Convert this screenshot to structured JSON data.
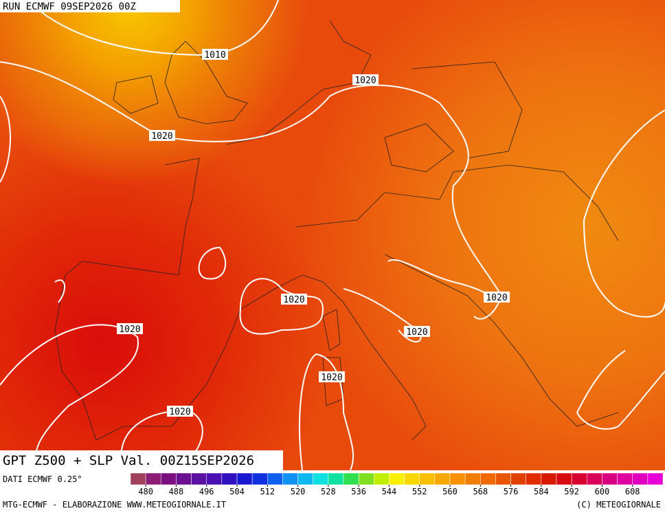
{
  "header": {
    "run": "RUN ECMWF 09SEP2026 00Z"
  },
  "map": {
    "title": "GPT Z500 + SLP Val. 00Z15SEP2026",
    "isobar_labels": [
      1010,
      1020,
      1020,
      1020,
      1020,
      1020,
      1020,
      1020,
      1020
    ]
  },
  "legend": {
    "source": "DATI ECMWF 0.25°",
    "colors": [
      "#a0405a",
      "#8c1e78",
      "#7a1080",
      "#6a1090",
      "#5a10a0",
      "#4a10b0",
      "#3010c0",
      "#1818d0",
      "#1030e0",
      "#1060f0",
      "#1090f0",
      "#10b8f0",
      "#10e0e0",
      "#10e0a0",
      "#30e050",
      "#80e020",
      "#c0f000",
      "#f8f000",
      "#f8d800",
      "#f8c000",
      "#f8a800",
      "#f89000",
      "#f07c00",
      "#f06800",
      "#e85400",
      "#e04000",
      "#e02c00",
      "#d81800",
      "#d80a10",
      "#d80030",
      "#d80058",
      "#d80080",
      "#e000a0",
      "#e000c0",
      "#e800d8"
    ],
    "ticks": [
      480,
      488,
      496,
      504,
      512,
      520,
      528,
      536,
      544,
      552,
      560,
      568,
      576,
      584,
      592,
      600,
      608
    ]
  },
  "footer": {
    "credit": "MTG-ECMWF - ELABORAZIONE WWW.METEOGIORNALE.IT",
    "copyright": "(C) METEOGIORNALE"
  }
}
